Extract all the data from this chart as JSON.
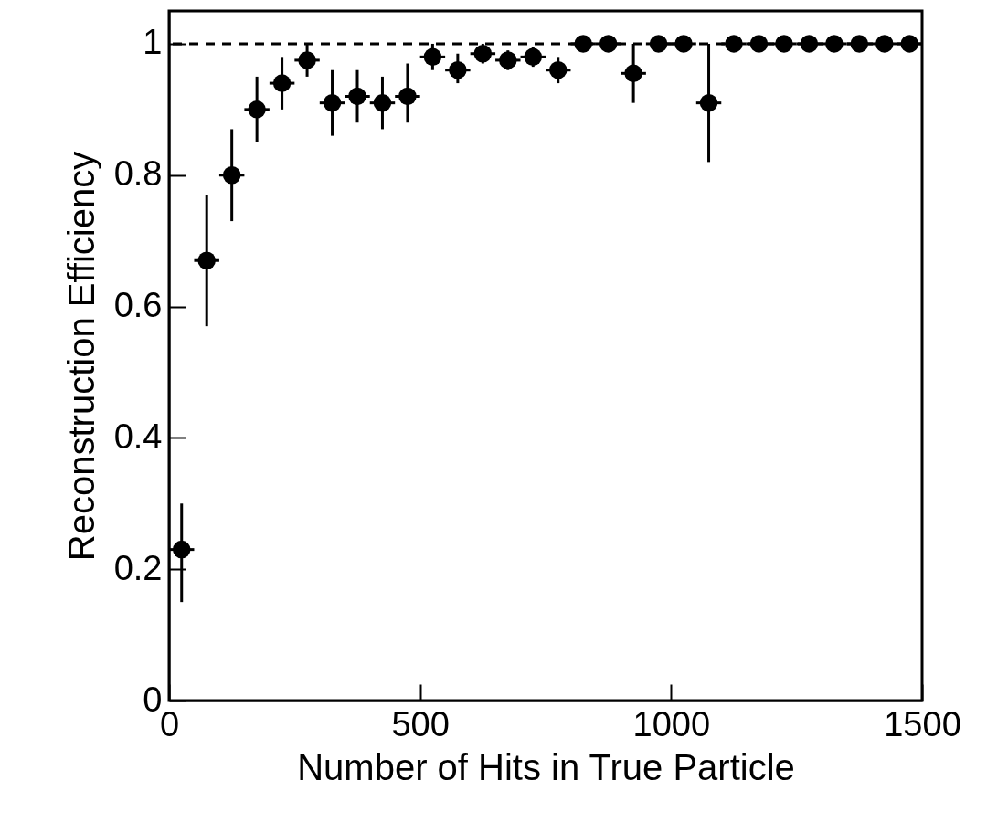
{
  "chart_data": {
    "type": "scatter",
    "xlabel": "Number of Hits in True Particle",
    "ylabel": "Reconstruction Efficiency",
    "x": [
      25,
      75,
      125,
      175,
      225,
      275,
      325,
      375,
      425,
      475,
      525,
      575,
      625,
      675,
      725,
      775,
      825,
      875,
      925,
      975,
      1025,
      1075,
      1125,
      1175,
      1225,
      1275,
      1325,
      1375,
      1425,
      1475
    ],
    "values": [
      0.23,
      0.67,
      0.8,
      0.9,
      0.94,
      0.975,
      0.91,
      0.92,
      0.91,
      0.92,
      0.98,
      0.96,
      0.985,
      0.975,
      0.98,
      0.96,
      1,
      1,
      0.955,
      1,
      1,
      0.91,
      1,
      1,
      1,
      1,
      1,
      1,
      1,
      1
    ],
    "errors": [
      [
        0.15,
        0.3
      ],
      [
        0.57,
        0.77
      ],
      [
        0.73,
        0.87
      ],
      [
        0.85,
        0.95
      ],
      [
        0.9,
        0.98
      ],
      [
        0.95,
        1
      ],
      [
        0.86,
        0.96
      ],
      [
        0.88,
        0.96
      ],
      [
        0.87,
        0.95
      ],
      [
        0.88,
        0.97
      ],
      [
        0.96,
        1
      ],
      [
        0.94,
        0.985
      ],
      [
        0.97,
        1
      ],
      [
        0.96,
        0.99
      ],
      [
        0.965,
        0.995
      ],
      [
        0.94,
        0.98
      ],
      null,
      null,
      [
        0.91,
        1
      ],
      null,
      null,
      [
        0.82,
        1
      ],
      null,
      null,
      null,
      null,
      null,
      null,
      null,
      null
    ],
    "xerrors": [
      25,
      25,
      25,
      25,
      25,
      25,
      25,
      25,
      25,
      25,
      25,
      25,
      25,
      25,
      25,
      25,
      25,
      25,
      25,
      25,
      25,
      25,
      25,
      25,
      25,
      25,
      25,
      25,
      25,
      25
    ],
    "color": "#000000",
    "marker": "circle",
    "xlim": [
      0,
      1500
    ],
    "xticks": [
      0,
      500,
      1000,
      1500
    ],
    "ylim": [
      0,
      1.05
    ],
    "yticks": [
      0,
      0.2,
      0.4,
      0.6,
      0.8,
      1
    ],
    "ref_lines": [
      {
        "axis": "y",
        "value": 1,
        "line_style": "dashed"
      }
    ],
    "grid": false
  }
}
